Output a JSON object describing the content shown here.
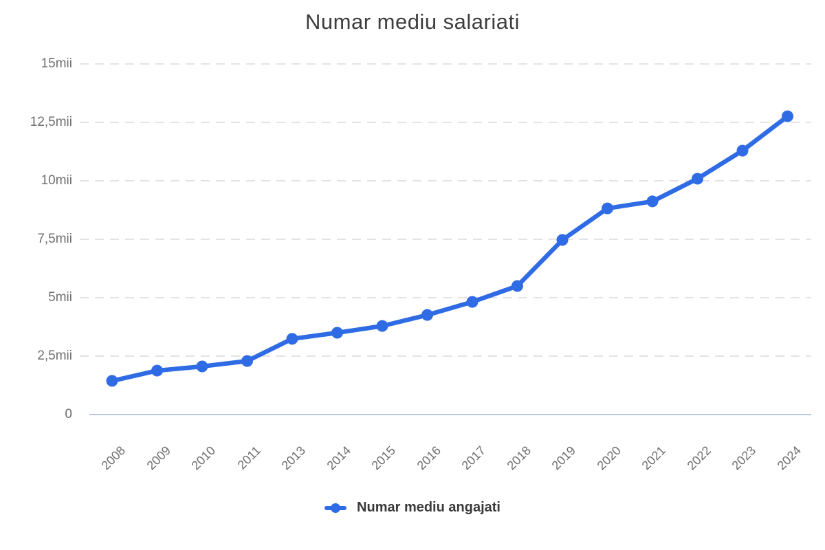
{
  "chart": {
    "title": "Numar mediu salariati",
    "legend": {
      "label": "Numar mediu angajati"
    }
  },
  "colors": {
    "series": "#2F6BE4",
    "grid": "#DADADA",
    "baseline": "#B9C7DE",
    "title_text": "#3D3D3D",
    "tick_text": "#6E6E6E",
    "legend_text": "#3A3A3A",
    "background": "#FFFFFF"
  },
  "chart_data": {
    "type": "line",
    "title": "Numar mediu salariati",
    "xlabel": "",
    "ylabel": "",
    "unit": "mii",
    "categories": [
      "2008",
      "2009",
      "2010",
      "2011",
      "2013",
      "2014",
      "2015",
      "2016",
      "2017",
      "2018",
      "2019",
      "2020",
      "2021",
      "2022",
      "2023",
      "2024"
    ],
    "series": [
      {
        "name": "Numar mediu angajati",
        "color": "#2F6BE4",
        "values": [
          1.44,
          1.88,
          2.06,
          2.29,
          3.24,
          3.5,
          3.79,
          4.26,
          4.82,
          5.5,
          7.47,
          8.82,
          9.12,
          10.09,
          11.29,
          12.76
        ]
      }
    ],
    "ylim": [
      0,
      15
    ],
    "yticks": [
      {
        "value": 0,
        "label": "0"
      },
      {
        "value": 2.5,
        "label": "2,5mii"
      },
      {
        "value": 5,
        "label": "5mii"
      },
      {
        "value": 7.5,
        "label": "7,5mii"
      },
      {
        "value": 10,
        "label": "10mii"
      },
      {
        "value": 12.5,
        "label": "12,5mii"
      },
      {
        "value": 15,
        "label": "15mii"
      }
    ],
    "grid": "horizontal-dashed",
    "legend_position": "bottom",
    "marker": "circle"
  }
}
